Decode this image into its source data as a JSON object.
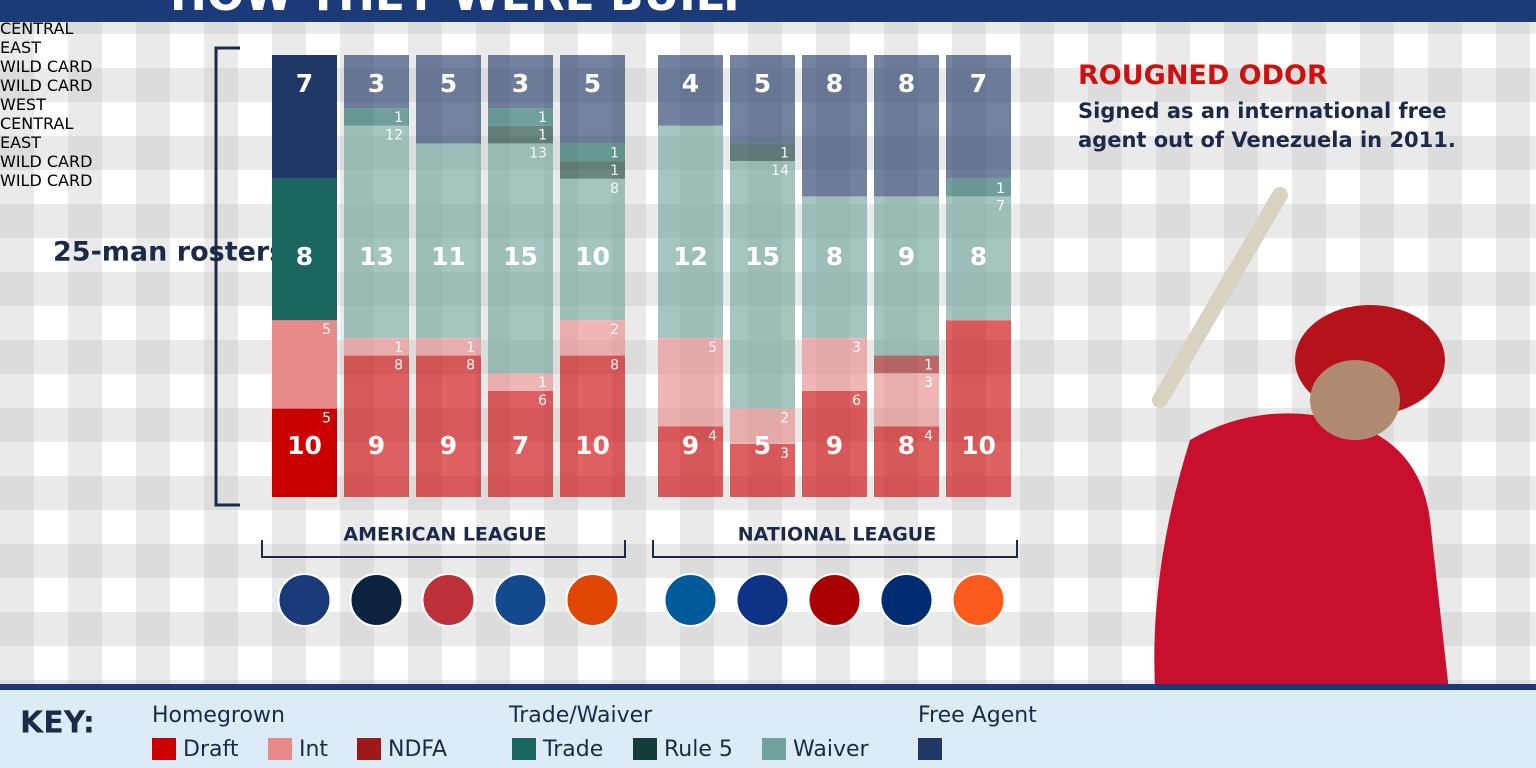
{
  "chart_data": {
    "type": "stacked-bar",
    "title": "HOW THEY WERE BUILT",
    "y_label": "25-man rosters",
    "ylim": [
      0,
      25
    ],
    "categories": [
      "WEST",
      "CENTRAL",
      "EAST",
      "WILD CARD",
      "WILD CARD",
      "WEST",
      "CENTRAL",
      "EAST",
      "WILD CARD",
      "WILD CARD"
    ],
    "leagues": [
      "AMERICAN LEAGUE",
      "NATIONAL LEAGUE"
    ],
    "key_title": "KEY:",
    "groups": [
      {
        "name": "Homegrown",
        "totals": [
          10,
          9,
          9,
          7,
          10,
          9,
          5,
          9,
          8,
          10
        ],
        "series": [
          {
            "name": "Draft",
            "color": "#cc0000",
            "values": [
              5,
              8,
              8,
              6,
              8,
              4,
              3,
              6,
              4,
              10
            ]
          },
          {
            "name": "Int",
            "color": "#e88a8a",
            "values": [
              5,
              1,
              1,
              1,
              2,
              5,
              2,
              3,
              3,
              null
            ]
          },
          {
            "name": "NDFA",
            "color": "#9e1a1a",
            "values": [
              null,
              null,
              null,
              null,
              null,
              null,
              null,
              null,
              1,
              null
            ]
          }
        ]
      },
      {
        "name": "Trade/Waiver",
        "totals": [
          8,
          13,
          11,
          15,
          10,
          12,
          15,
          8,
          9,
          8
        ],
        "series": [
          {
            "name": "Trade",
            "color": "#1a6660",
            "values": [
              8,
              1,
              null,
              1,
              1,
              null,
              null,
              null,
              null,
              1
            ]
          },
          {
            "name": "Rule 5",
            "color": "#123e38",
            "values": [
              null,
              null,
              null,
              1,
              1,
              null,
              1,
              null,
              null,
              null
            ]
          },
          {
            "name": "Waiver",
            "color": "#6fa39c",
            "values": [
              null,
              12,
              11,
              13,
              8,
              12,
              14,
              8,
              9,
              7
            ]
          }
        ]
      },
      {
        "name": "Free Agent",
        "series": [
          {
            "color": "#1f3866",
            "values": [
              7,
              3,
              5,
              3,
              5,
              4,
              5,
              8,
              8,
              7
            ]
          }
        ]
      }
    ],
    "annotation": {
      "title": "ROUGNED ODOR",
      "text": "Signed as an international free agent out of Venezuela in 2011."
    }
  }
}
